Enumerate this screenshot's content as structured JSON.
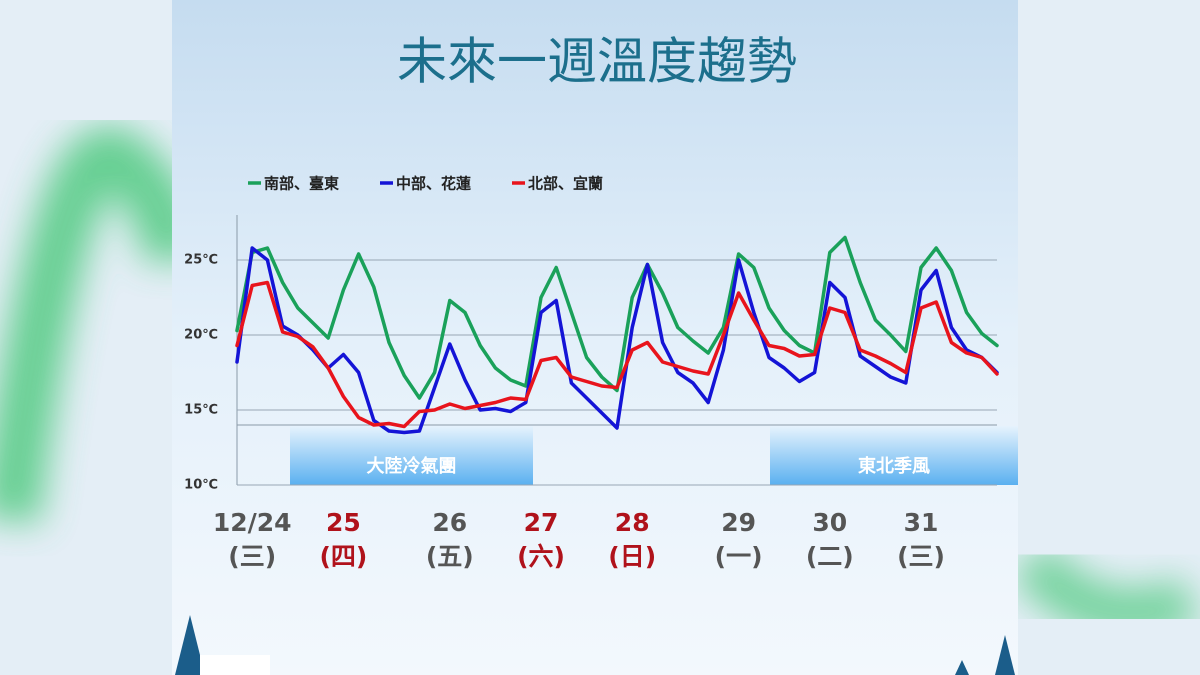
{
  "chart_data": {
    "type": "line",
    "title": "未來一週溫度趨勢",
    "categories": [
      null,
      "12/24",
      null,
      null,
      null,
      null,
      null,
      "25",
      null,
      null,
      null,
      null,
      null,
      null,
      "26",
      null,
      null,
      null,
      null,
      null,
      "27",
      null,
      null,
      null,
      null,
      null,
      "28",
      null,
      null,
      null,
      null,
      null,
      null,
      "29",
      null,
      null,
      null,
      null,
      null,
      "30",
      null,
      null,
      null,
      null,
      null,
      "31",
      null,
      null,
      null,
      null,
      null
    ],
    "weekdays": [
      null,
      "(三)",
      null,
      null,
      null,
      null,
      null,
      "(四)",
      null,
      null,
      null,
      null,
      null,
      null,
      "(五)",
      null,
      null,
      null,
      null,
      null,
      "(六)",
      null,
      null,
      null,
      null,
      null,
      "(日)",
      null,
      null,
      null,
      null,
      null,
      null,
      "(一)",
      null,
      null,
      null,
      null,
      null,
      "(二)",
      null,
      null,
      null,
      null,
      null,
      "(三)",
      null,
      null,
      null,
      null,
      null
    ],
    "label_colors": [
      null,
      "#555555",
      null,
      null,
      null,
      null,
      null,
      "#b0121b",
      null,
      null,
      null,
      null,
      null,
      null,
      "#555555",
      null,
      null,
      null,
      null,
      null,
      "#b0121b",
      null,
      null,
      null,
      null,
      null,
      "#b0121b",
      null,
      null,
      null,
      null,
      null,
      null,
      "#555555",
      null,
      null,
      null,
      null,
      null,
      "#555555",
      null,
      null,
      null,
      null,
      null,
      "#555555",
      null,
      null,
      null,
      null,
      null
    ],
    "series": [
      {
        "name": "南部、臺東",
        "color": "#1aa15a",
        "values": [
          20.3,
          25.5,
          25.8,
          23.5,
          21.8,
          20.8,
          19.8,
          23.0,
          25.4,
          23.2,
          19.5,
          17.3,
          15.8,
          17.5,
          22.3,
          21.5,
          19.3,
          17.8,
          17.0,
          16.6,
          22.5,
          24.5,
          21.5,
          18.5,
          17.2,
          16.3,
          22.5,
          24.7,
          22.8,
          20.5,
          19.6,
          18.8,
          20.5,
          25.4,
          24.5,
          21.8,
          20.3,
          19.3,
          18.8,
          25.5,
          26.5,
          23.5,
          21.0,
          20.0,
          18.9,
          24.5,
          25.8,
          24.3,
          21.5,
          20.1,
          19.3
        ]
      },
      {
        "name": "中部、花蓮",
        "color": "#1414d6",
        "values": [
          18.2,
          25.8,
          25.0,
          20.6,
          20.0,
          19.0,
          17.8,
          18.7,
          17.5,
          14.3,
          13.6,
          13.5,
          13.6,
          16.5,
          19.4,
          17.0,
          15.0,
          15.1,
          14.9,
          15.5,
          21.5,
          22.3,
          16.8,
          15.8,
          14.8,
          13.8,
          20.5,
          24.7,
          19.5,
          17.5,
          16.8,
          15.5,
          19.0,
          25.0,
          21.5,
          18.5,
          17.8,
          16.9,
          17.5,
          23.5,
          22.5,
          18.6,
          17.9,
          17.2,
          16.8,
          23.0,
          24.3,
          20.5,
          19.0,
          18.5,
          17.5
        ]
      },
      {
        "name": "北部、宜蘭",
        "color": "#e8141c",
        "values": [
          19.3,
          23.3,
          23.5,
          20.2,
          19.9,
          19.2,
          17.8,
          15.9,
          14.5,
          14.0,
          14.1,
          13.9,
          14.9,
          15.0,
          15.4,
          15.1,
          15.3,
          15.5,
          15.8,
          15.7,
          18.3,
          18.5,
          17.2,
          16.9,
          16.6,
          16.5,
          19.0,
          19.5,
          18.2,
          17.9,
          17.6,
          17.4,
          20.0,
          22.8,
          21.0,
          19.3,
          19.1,
          18.6,
          18.7,
          21.8,
          21.5,
          19.0,
          18.6,
          18.1,
          17.5,
          21.8,
          22.2,
          19.5,
          18.8,
          18.5,
          17.4
        ]
      }
    ],
    "ylim": [
      10,
      28
    ],
    "yticks": [
      {
        "value": 10,
        "label": "10℃"
      },
      {
        "value": 15,
        "label": "15℃"
      },
      {
        "value": 20,
        "label": "20℃"
      },
      {
        "value": 25,
        "label": "25℃"
      }
    ],
    "grid": true,
    "annotations": [
      "大陸冷氣團",
      "東北季風"
    ]
  }
}
